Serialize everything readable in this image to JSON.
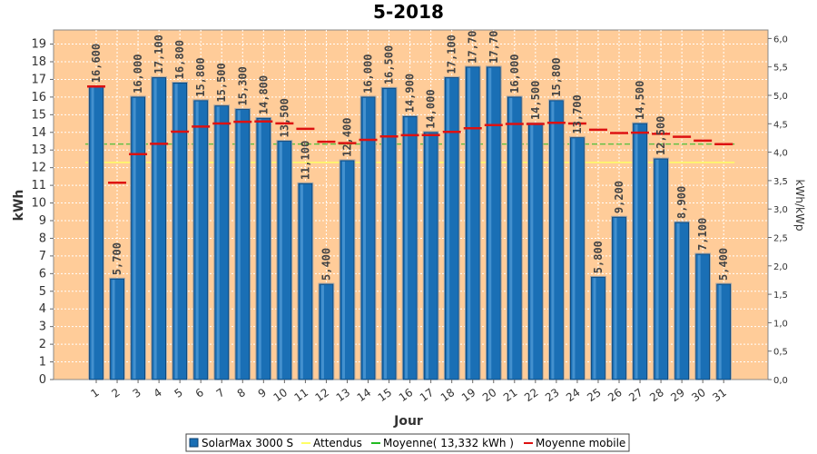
{
  "chart_data": {
    "type": "bar",
    "title": "5-2018",
    "xlabel": "Jour",
    "ylabel": "kWh",
    "ylabel_right": "kWh/kWp",
    "ylim": [
      0,
      19.8
    ],
    "ylim_right": [
      0,
      6.15
    ],
    "y_ticks": [
      0,
      1,
      2,
      3,
      4,
      5,
      6,
      7,
      8,
      9,
      10,
      11,
      12,
      13,
      14,
      15,
      16,
      17,
      18,
      19
    ],
    "y_ticks_right": [
      "0,0",
      "0,5",
      "1,0",
      "1,5",
      "2,0",
      "2,5",
      "3,0",
      "3,5",
      "4,0",
      "4,5",
      "5,0",
      "5,5",
      "6,0"
    ],
    "categories": [
      "1",
      "2",
      "3",
      "4",
      "5",
      "6",
      "7",
      "8",
      "9",
      "10",
      "11",
      "12",
      "13",
      "14",
      "15",
      "16",
      "17",
      "18",
      "19",
      "20",
      "21",
      "22",
      "23",
      "24",
      "25",
      "26",
      "27",
      "28",
      "29",
      "30",
      "31"
    ],
    "series": [
      {
        "name": "SolarMax 3000 S",
        "values": [
          16.6,
          5.7,
          16.0,
          17.1,
          16.8,
          15.8,
          15.5,
          15.3,
          14.8,
          13.5,
          11.1,
          5.4,
          12.4,
          16.0,
          16.5,
          14.9,
          14.0,
          17.1,
          17.7,
          17.7,
          16.0,
          14.5,
          15.8,
          13.7,
          5.8,
          9.2,
          14.5,
          12.5,
          8.9,
          7.1,
          5.4
        ],
        "labels": [
          "16,600",
          "5,700",
          "16,000",
          "17,100",
          "16,800",
          "15,800",
          "15,500",
          "15,300",
          "14,800",
          "13,500",
          "11,100",
          "5,400",
          "12,400",
          "16,000",
          "16,500",
          "14,900",
          "14,000",
          "17,100",
          "17,70",
          "17,70",
          "16,000",
          "14,500",
          "15,800",
          "13,700",
          "5,800",
          "9,200",
          "14,500",
          "12,500",
          "8,900",
          "7,100",
          "5,400"
        ],
        "color": "#1a6fb5"
      },
      {
        "name": "Attendus",
        "value": 12.3,
        "color": "#ffff66"
      },
      {
        "name": "Moyenne( 13,332 kWh )",
        "value": 13.332,
        "color": "#22bb22"
      },
      {
        "name": "Moyenne mobile",
        "values": [
          16.6,
          11.15,
          12.77,
          13.35,
          14.04,
          14.33,
          14.5,
          14.6,
          14.62,
          14.51,
          14.2,
          13.47,
          13.39,
          13.58,
          13.77,
          13.84,
          13.85,
          14.03,
          14.23,
          14.41,
          14.48,
          14.48,
          14.54,
          14.5,
          14.15,
          13.96,
          13.98,
          13.92,
          13.75,
          13.53,
          13.33
        ],
        "color": "#dd1111"
      }
    ],
    "grid": true,
    "legend": "bottom",
    "background_color": "#ffcc99"
  }
}
